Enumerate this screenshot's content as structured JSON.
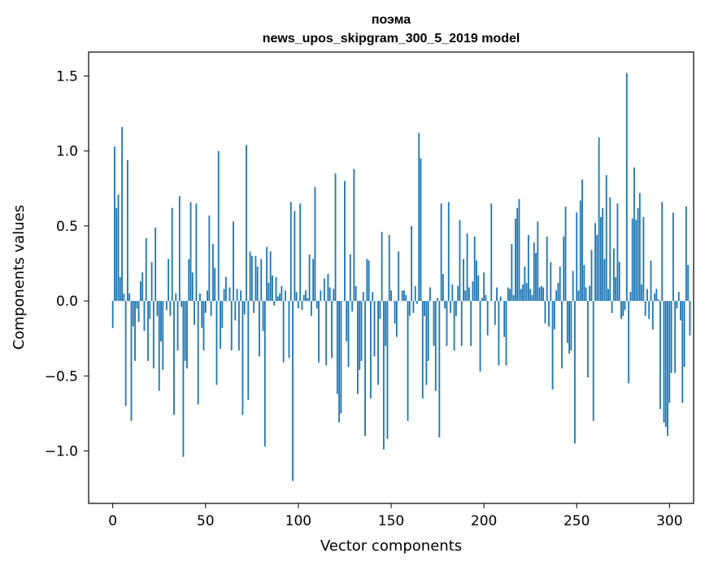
{
  "chart_data": {
    "type": "bar",
    "title": "поэма",
    "subtitle": "news_upos_skipgram_300_5_2019 model",
    "xlabel": "Vector components",
    "ylabel": "Components values",
    "xlim": [
      -13,
      313
    ],
    "ylim": [
      -1.35,
      1.66
    ],
    "xticks": [
      0,
      50,
      100,
      150,
      200,
      250,
      300
    ],
    "xtick_labels": [
      "0",
      "50",
      "100",
      "150",
      "200",
      "250",
      "300"
    ],
    "yticks": [
      -1.0,
      -0.5,
      0.0,
      0.5,
      1.0,
      1.5
    ],
    "ytick_labels": [
      "−1.0",
      "−0.5",
      "0.0",
      "0.5",
      "1.0",
      "1.5"
    ],
    "bar_color": "#1f77b4",
    "grid": false,
    "legend": "none",
    "series": [
      {
        "values": [
          -0.18,
          1.03,
          0.62,
          0.71,
          0.16,
          1.16,
          0.05,
          -0.7,
          0.94,
          0.05,
          -0.8,
          -0.17,
          -0.4,
          -0.05,
          -0.14,
          0.13,
          0.19,
          -0.2,
          0.42,
          -0.4,
          -0.12,
          0.26,
          -0.45,
          0.49,
          -0.1,
          -0.6,
          -0.27,
          -0.46,
          0.0,
          -0.06,
          0.28,
          -0.1,
          0.62,
          -0.76,
          0.05,
          -0.33,
          0.7,
          -0.04,
          -1.04,
          -0.4,
          -0.45,
          0.28,
          0.66,
          0.19,
          -0.16,
          0.65,
          -0.69,
          0.05,
          -0.18,
          -0.33,
          -0.08,
          0.07,
          0.57,
          -0.1,
          0.38,
          0.22,
          -0.56,
          1.0,
          -0.32,
          -0.18,
          0.08,
          0.16,
          0.0,
          0.09,
          -0.33,
          0.53,
          -0.13,
          0.08,
          -0.33,
          0.07,
          -0.76,
          -0.09,
          1.04,
          -0.66,
          0.33,
          0.3,
          -0.08,
          0.3,
          0.23,
          -0.37,
          0.28,
          -0.2,
          -0.97,
          0.36,
          0.12,
          0.33,
          0.17,
          -0.03,
          0.16,
          0.03,
          0.05,
          0.1,
          -0.41,
          0.07,
          0.0,
          -0.38,
          0.66,
          -1.2,
          0.6,
          0.06,
          -0.05,
          0.65,
          -0.06,
          0.04,
          0.07,
          0.02,
          0.31,
          -0.1,
          0.28,
          0.76,
          -0.05,
          -0.41,
          0.07,
          0.0,
          0.15,
          -0.43,
          0.18,
          0.09,
          -0.38,
          0.08,
          0.85,
          -0.62,
          -0.81,
          -0.75,
          0.0,
          0.8,
          -0.27,
          -0.44,
          0.31,
          -0.07,
          0.88,
          0.1,
          -0.62,
          -0.46,
          -0.4,
          0.06,
          -0.9,
          0.28,
          0.27,
          -0.65,
          0.06,
          -0.37,
          0.0,
          -0.56,
          -0.12,
          0.46,
          -0.99,
          -0.3,
          -0.92,
          0.44,
          0.07,
          0.0,
          -0.15,
          -0.24,
          0.33,
          0.0,
          0.07,
          0.07,
          0.04,
          -0.8,
          -0.1,
          0.5,
          -0.08,
          0.1,
          -0.02,
          1.12,
          0.95,
          -0.65,
          -0.1,
          -0.56,
          -0.4,
          0.09,
          0.0,
          -0.3,
          -0.6,
          0.02,
          -0.91,
          0.65,
          0.18,
          -0.05,
          -0.3,
          0.66,
          -0.08,
          0.11,
          -0.33,
          -0.1,
          0.1,
          0.54,
          -0.3,
          0.28,
          0.07,
          0.45,
          0.09,
          -0.3,
          0.13,
          0.43,
          0.27,
          0.17,
          -0.47,
          0.02,
          0.19,
          0.04,
          -0.23,
          0.0,
          0.65,
          0.0,
          -0.16,
          0.09,
          -0.43,
          0.03,
          0.0,
          -0.24,
          -0.43,
          0.09,
          0.08,
          0.38,
          0.04,
          0.55,
          0.62,
          0.68,
          0.08,
          0.11,
          0.23,
          0.12,
          0.44,
          0.08,
          0.04,
          0.39,
          0.32,
          0.53,
          0.09,
          0.1,
          0.09,
          -0.15,
          0.43,
          -0.17,
          0.26,
          -0.59,
          -0.19,
          0.07,
          0.12,
          0.23,
          -0.45,
          0.43,
          0.63,
          -0.28,
          -0.35,
          -0.33,
          0.2,
          -0.95,
          0.59,
          0.07,
          0.67,
          0.81,
          0.24,
          0.09,
          -0.51,
          0.1,
          0.34,
          -0.8,
          0.52,
          0.44,
          1.09,
          0.56,
          0.62,
          0.28,
          0.84,
          0.08,
          0.69,
          -0.08,
          0.35,
          0.16,
          0.65,
          0.26,
          -0.12,
          -0.1,
          -0.06,
          1.52,
          -0.55,
          0.06,
          0.55,
          0.89,
          0.54,
          0.62,
          0.72,
          0.11,
          0.56,
          -0.1,
          0.08,
          -0.12,
          0.27,
          -0.19,
          0.05,
          0.08,
          0.01,
          -0.72,
          0.66,
          -0.81,
          -0.84,
          -0.9,
          -0.68,
          -0.48,
          0.59,
          -0.48,
          -0.05,
          0.06,
          -0.13,
          -0.68,
          -0.44,
          0.63,
          0.24,
          -0.23
        ]
      }
    ]
  }
}
